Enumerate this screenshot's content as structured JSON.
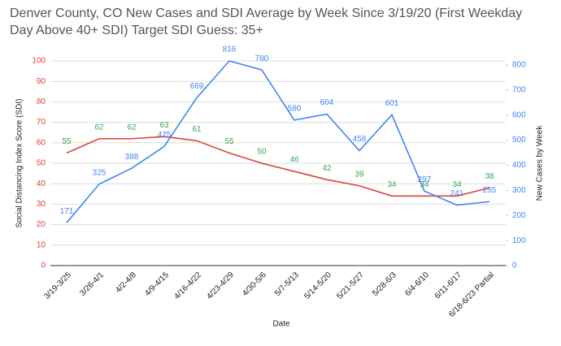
{
  "chart_data": {
    "type": "line",
    "title": "Denver County, CO New Cases and SDI Average by Week Since 3/19/20 (First Weekday Day Above 40+ SDI) Target SDI Guess: 35+",
    "x_label": "Date",
    "y_label": "Social Distancing Index Score (SDI)",
    "y2_label": "New Cases by Week",
    "categories": [
      "3/19-3/25",
      "3/26-4/1",
      "4/2-4/8",
      "4/9-4/15",
      "4/16-4/22",
      "4/23-4/29",
      "4/30-5/6",
      "5/7-5/13",
      "5/14-5/20",
      "5/21-5/27",
      "5/28-6/3",
      "6/4-6/10",
      "6/11-6/17",
      "6/18-6/23 Partial"
    ],
    "series": [
      {
        "name": "SDI",
        "color": "#db4437",
        "label_color": "#34a853",
        "values": [
          55,
          62,
          62,
          63,
          61,
          55,
          50,
          46,
          42,
          39,
          34,
          34,
          34,
          38
        ]
      },
      {
        "name": "New Cases",
        "color": "#4285f4",
        "label_color": "#4285f4",
        "axis": "y2",
        "values": [
          171,
          325,
          388,
          475,
          669,
          816,
          780,
          580,
          604,
          458,
          601,
          297,
          241,
          255
        ]
      }
    ],
    "ylim": [
      0,
      100
    ],
    "yticks": [
      0,
      10,
      20,
      30,
      40,
      50,
      60,
      70,
      80,
      90,
      100
    ],
    "y_color": "#db4437",
    "y2lim": [
      0,
      816
    ],
    "y2ticks": [
      0,
      100,
      200,
      300,
      400,
      500,
      600,
      700,
      800
    ],
    "y2_color": "#4285f4"
  }
}
